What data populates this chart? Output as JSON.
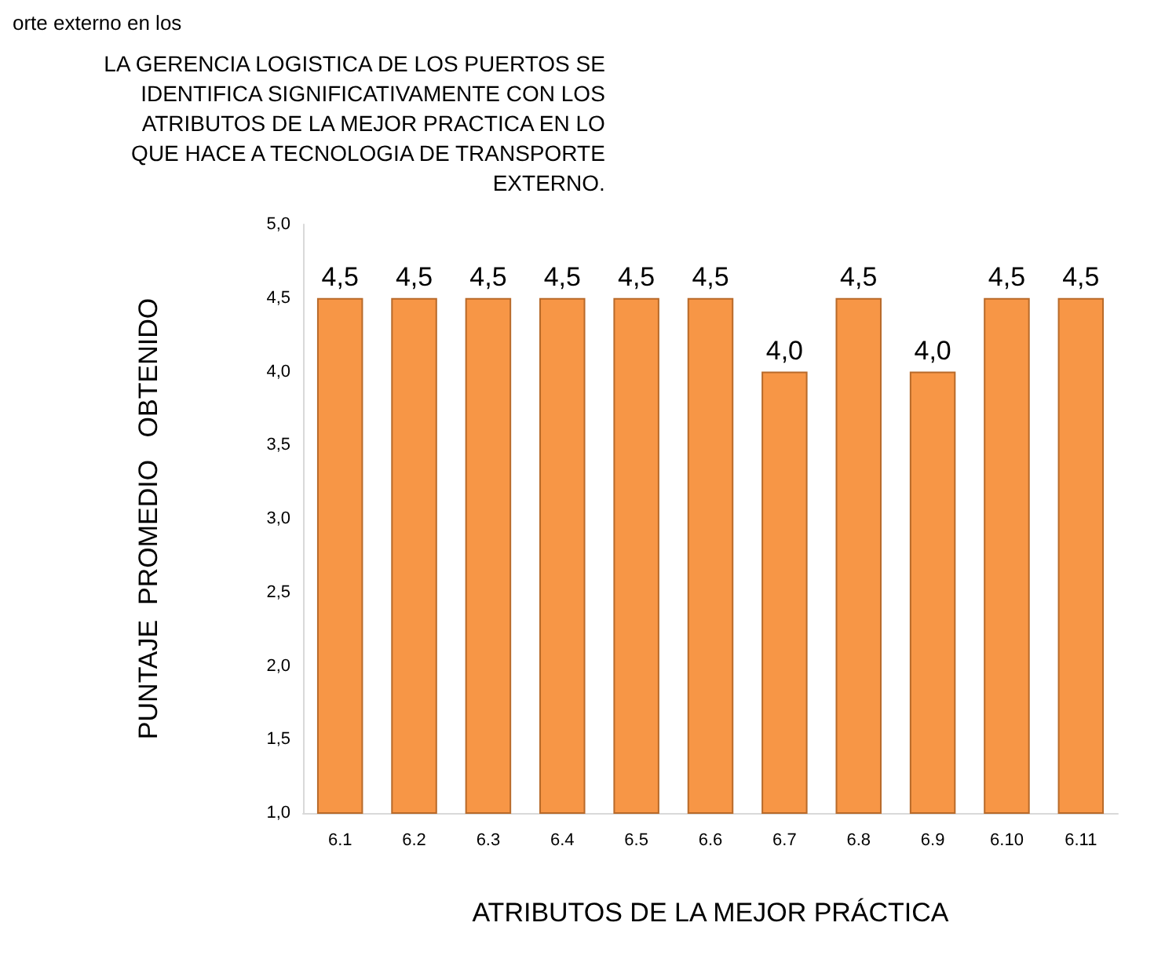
{
  "chart_data": {
    "type": "bar",
    "title": "LA GERENCIA LOGISTICA DE LOS PUERTOS SE\nIDENTIFICA SIGNIFICATIVAMENTE CON LOS\nATRIBUTOS DE LA MEJOR PRACTICA EN LO\nQUE HACE A TECNOLOGIA DE TRANSPORTE\nEXTERNO.",
    "xlabel": "ATRIBUTOS DE LA MEJOR PRÁCTICA",
    "ylabel": "PUNTAJE  PROMEDIO   OBTENIDO",
    "annotations": [
      "orte externo en los"
    ],
    "categories": [
      "6.1",
      "6.2",
      "6.3",
      "6.4",
      "6.5",
      "6.6",
      "6.7",
      "6.8",
      "6.9",
      "6.10",
      "6.11"
    ],
    "values": [
      4.5,
      4.5,
      4.5,
      4.5,
      4.5,
      4.5,
      4.0,
      4.5,
      4.0,
      4.5,
      4.5
    ],
    "value_labels": [
      "4,5",
      "4,5",
      "4,5",
      "4,5",
      "4,5",
      "4,5",
      "4,0",
      "4,5",
      "4,0",
      "4,5",
      "4,5"
    ],
    "color": "#f79646",
    "ylim": [
      1,
      5
    ],
    "yticks": [
      {
        "value": 1,
        "label": "1,0"
      },
      {
        "value": 1.5,
        "label": "1,5"
      },
      {
        "value": 2,
        "label": "2,0"
      },
      {
        "value": 2.5,
        "label": "2,5"
      },
      {
        "value": 3,
        "label": "3,0"
      },
      {
        "value": 3.5,
        "label": "3,5"
      },
      {
        "value": 4,
        "label": "4,0"
      },
      {
        "value": 4.5,
        "label": "4,5"
      },
      {
        "value": 5,
        "label": "5,0"
      }
    ],
    "grid": false
  }
}
